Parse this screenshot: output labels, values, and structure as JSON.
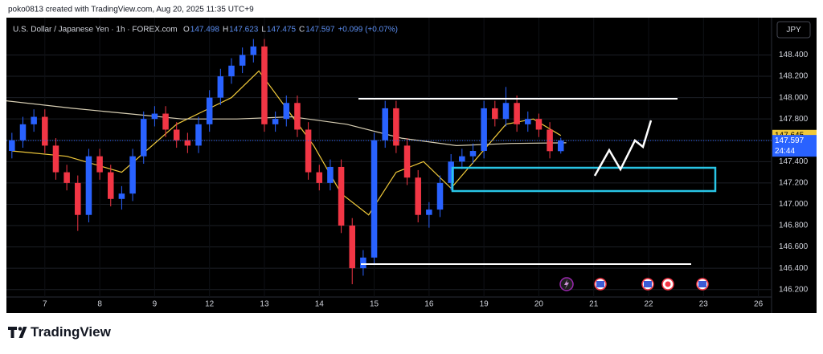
{
  "header": {
    "credit": "poko0813 created with TradingView.com, Aug 20, 2025 11:35 UTC+9",
    "logo": "TradingView"
  },
  "chart_data": {
    "type": "candlestick",
    "title": "U.S. Dollar / Japanese Yen · 1h · FOREX.com",
    "ohlc_labels": [
      "O",
      "H",
      "L",
      "C"
    ],
    "change": "+0.099 (+0.07%)",
    "currency": "JPY",
    "countdown": "24:44",
    "up_color": "#2962ff",
    "down_color": "#f23645",
    "x": [
      -0.6,
      -0.4,
      -0.2,
      0,
      0.2,
      0.4,
      0.6,
      0.8,
      1,
      1.2,
      1.4,
      1.6,
      1.8,
      2,
      2.2,
      2.4,
      2.6,
      2.8,
      3,
      3.2,
      3.4,
      3.6,
      3.8,
      4,
      4.2,
      4.4,
      4.6,
      4.8,
      5,
      5.2,
      5.4,
      5.6,
      5.8,
      6,
      6.2,
      6.4,
      6.6,
      6.8,
      7,
      7.2,
      7.4,
      7.6,
      7.8,
      8,
      8.2,
      8.4,
      8.6,
      8.8,
      9,
      9.2,
      9.4
    ],
    "open": [
      147.5,
      147.6,
      147.75,
      147.82,
      147.55,
      147.3,
      147.2,
      146.9,
      147.45,
      147.3,
      147.05,
      147.1,
      147.45,
      147.8,
      147.85,
      147.7,
      147.6,
      147.55,
      147.75,
      148.0,
      148.2,
      148.3,
      148.4,
      148.48,
      147.75,
      147.8,
      147.95,
      147.7,
      147.3,
      147.2,
      147.35,
      146.8,
      146.4,
      146.5,
      147.6,
      147.9,
      147.55,
      147.25,
      146.9,
      146.95,
      147.2,
      147.4,
      147.45,
      147.5,
      147.9,
      147.8,
      147.95,
      147.75,
      147.8,
      147.7,
      147.498
    ],
    "high": [
      147.67,
      147.82,
      147.89,
      147.89,
      147.62,
      147.37,
      147.27,
      147.52,
      147.52,
      147.37,
      147.17,
      147.52,
      147.87,
      147.92,
      147.92,
      147.77,
      147.67,
      147.82,
      148.07,
      148.27,
      148.37,
      148.47,
      148.55,
      148.55,
      147.87,
      148.02,
      148.02,
      147.77,
      147.37,
      147.42,
      147.42,
      146.87,
      146.57,
      147.67,
      147.97,
      147.97,
      147.62,
      147.32,
      147.02,
      147.27,
      147.47,
      147.52,
      147.57,
      147.97,
      147.97,
      148.1,
      148.02,
      147.87,
      147.85,
      147.77,
      147.623
    ],
    "low": [
      147.43,
      147.53,
      147.68,
      147.48,
      147.23,
      147.13,
      146.75,
      146.83,
      147.23,
      146.98,
      146.95,
      147.03,
      147.38,
      147.73,
      147.63,
      147.53,
      147.48,
      147.48,
      147.68,
      147.93,
      148.13,
      148.23,
      148.33,
      147.68,
      147.68,
      147.73,
      147.63,
      147.23,
      147.13,
      147.13,
      146.73,
      146.25,
      146.33,
      146.43,
      147.53,
      147.48,
      147.18,
      146.83,
      146.78,
      146.88,
      147.13,
      147.33,
      147.38,
      147.43,
      147.73,
      147.73,
      147.68,
      147.68,
      147.63,
      147.43,
      147.475
    ],
    "close": [
      147.6,
      147.75,
      147.82,
      147.55,
      147.3,
      147.2,
      146.9,
      147.45,
      147.3,
      147.05,
      147.1,
      147.45,
      147.8,
      147.85,
      147.7,
      147.6,
      147.55,
      147.75,
      148.0,
      148.2,
      148.3,
      148.4,
      148.48,
      147.75,
      147.8,
      147.95,
      147.7,
      147.3,
      147.2,
      147.35,
      146.8,
      146.4,
      146.5,
      147.6,
      147.9,
      147.55,
      147.25,
      146.9,
      146.95,
      147.2,
      147.4,
      147.45,
      147.5,
      147.9,
      147.8,
      147.95,
      147.75,
      147.8,
      147.7,
      147.498,
      147.597
    ],
    "ma": [
      {
        "color": "#f0c93a",
        "x": [
          -0.6,
          0.4,
          1.4,
          2.4,
          3.4,
          3.9,
          4.4,
          4.9,
          5.4,
          5.9,
          6.4,
          6.9,
          7.4,
          7.9,
          8.4,
          8.9,
          9.4
        ],
        "values": [
          147.5,
          147.45,
          147.3,
          147.75,
          148.0,
          148.25,
          147.9,
          147.55,
          147.1,
          146.9,
          147.3,
          147.4,
          147.15,
          147.45,
          147.75,
          147.8,
          147.645
        ]
      },
      {
        "color": "#d8cfb4",
        "x": [
          -0.7,
          0.5,
          1.5,
          2.5,
          3.5,
          4.5,
          5.5,
          6.5,
          7.5,
          8.5,
          9.5
        ],
        "values": [
          147.97,
          147.9,
          147.85,
          147.8,
          147.8,
          147.82,
          147.75,
          147.62,
          147.55,
          147.57,
          147.576
        ]
      }
    ],
    "xlim": [
      -0.7,
      13.24
    ],
    "xticks": [
      {
        "value": 0,
        "label": "7"
      },
      {
        "value": 1,
        "label": "8"
      },
      {
        "value": 2,
        "label": "9"
      },
      {
        "value": 3,
        "label": "12"
      },
      {
        "value": 4,
        "label": "13"
      },
      {
        "value": 5,
        "label": "14"
      },
      {
        "value": 6,
        "label": "15"
      },
      {
        "value": 7,
        "label": "16"
      },
      {
        "value": 8,
        "label": "19"
      },
      {
        "value": 9,
        "label": "20"
      },
      {
        "value": 10,
        "label": "21"
      },
      {
        "value": 11,
        "label": "22"
      },
      {
        "value": 12,
        "label": "23"
      },
      {
        "value": 13,
        "label": "26"
      }
    ],
    "ylim": [
      146.13,
      148.75
    ],
    "yticks": [
      {
        "value": 146.2,
        "label": "146.200"
      },
      {
        "value": 146.4,
        "label": "146.400"
      },
      {
        "value": 146.6,
        "label": "146.600"
      },
      {
        "value": 146.8,
        "label": "146.800"
      },
      {
        "value": 147.0,
        "label": "147.000"
      },
      {
        "value": 147.2,
        "label": "147.200"
      },
      {
        "value": 147.4,
        "label": "147.400"
      },
      {
        "value": 147.6,
        "label": "147.600"
      },
      {
        "value": 147.8,
        "label": "147.800"
      },
      {
        "value": 148.0,
        "label": "148.000"
      },
      {
        "value": 148.2,
        "label": "148.200"
      },
      {
        "value": 148.4,
        "label": "148.400"
      }
    ],
    "grid": true
  }
}
